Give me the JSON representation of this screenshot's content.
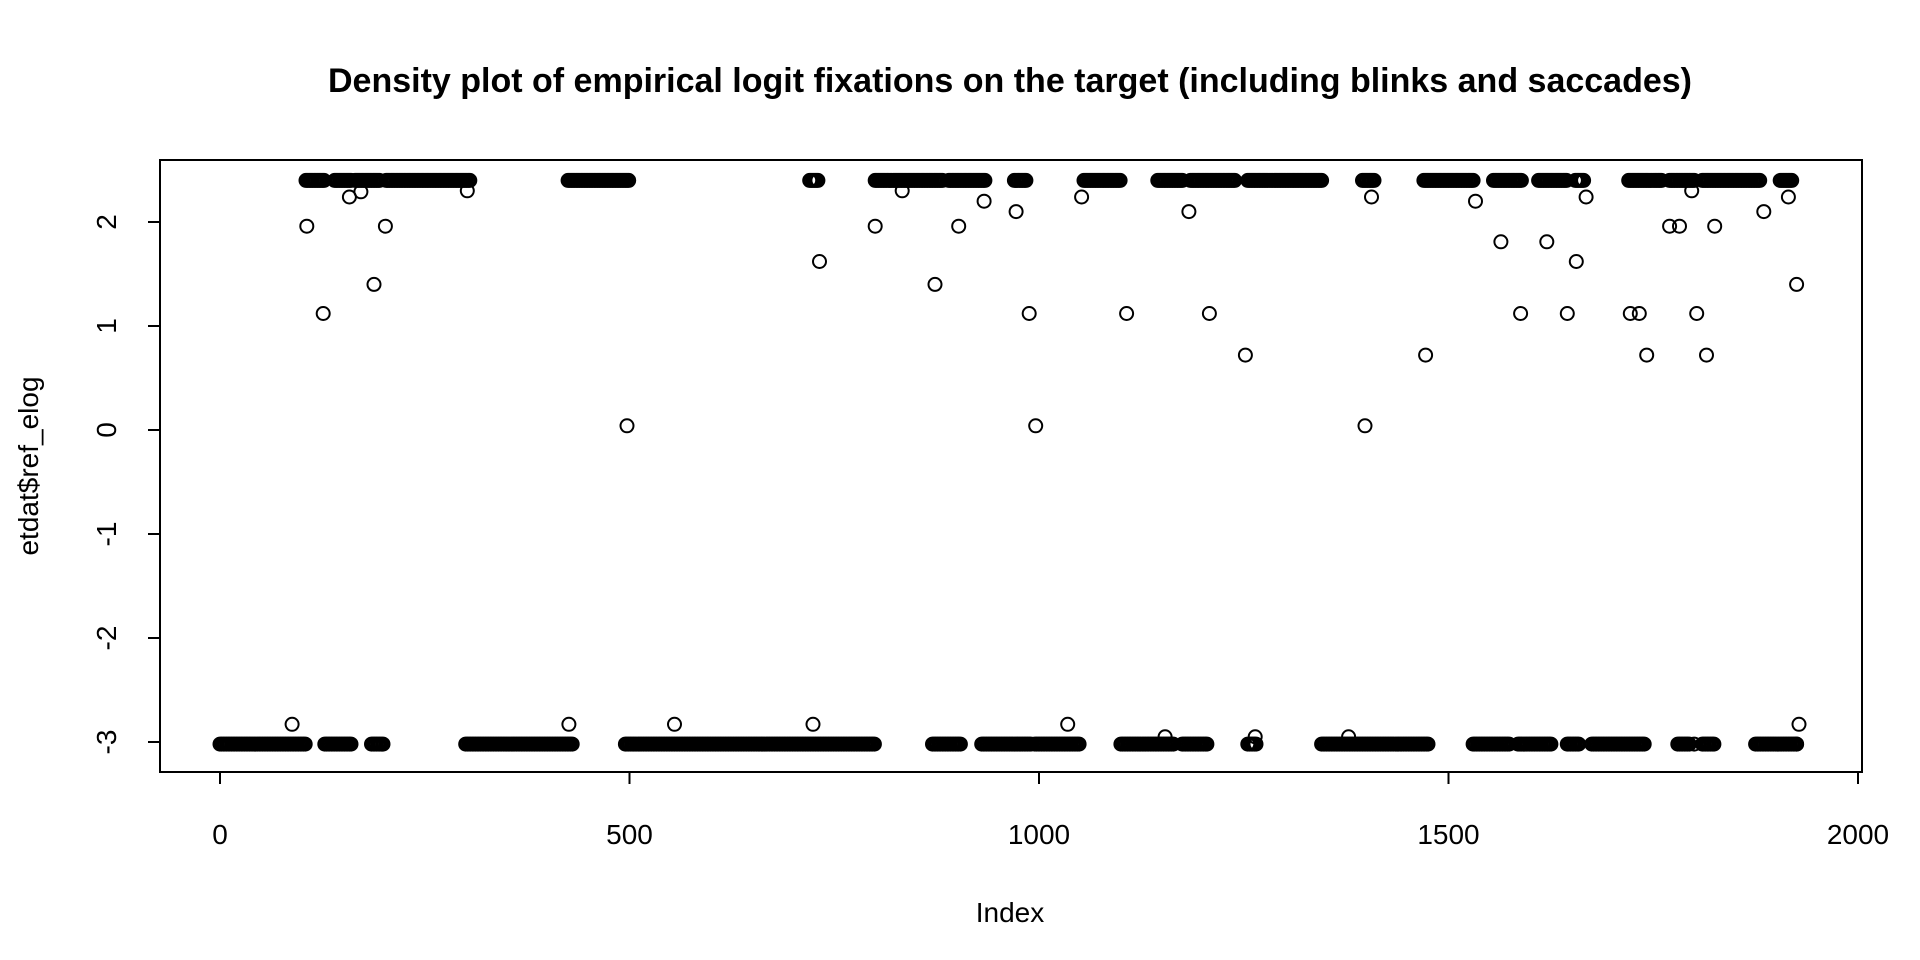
{
  "chart_data": {
    "type": "scatter",
    "title": "Density plot of empirical logit fixations on the target (including blinks and saccades)",
    "xlabel": "Index",
    "ylabel": "etdat$ref_elog",
    "xlim": [
      0,
      2000
    ],
    "ylim": [
      -3.2,
      2.6
    ],
    "x_ticks": [
      0,
      500,
      1000,
      1500,
      2000
    ],
    "x_tick_labels": [
      "0",
      "500",
      "1000",
      "1500",
      "2000"
    ],
    "y_ticks": [
      -3,
      -2,
      -1,
      0,
      1,
      2
    ],
    "y_tick_labels": [
      "-3",
      "-2",
      "-1",
      "0",
      "1",
      "2"
    ],
    "grid": false,
    "marker": "open-circle",
    "high_runs": [
      [
        105,
        128
      ],
      [
        140,
        160
      ],
      [
        165,
        195
      ],
      [
        203,
        305
      ],
      [
        425,
        500
      ],
      [
        720,
        730
      ],
      [
        800,
        882
      ],
      [
        890,
        935
      ],
      [
        970,
        985
      ],
      [
        1055,
        1100
      ],
      [
        1145,
        1175
      ],
      [
        1185,
        1240
      ],
      [
        1255,
        1345
      ],
      [
        1395,
        1410
      ],
      [
        1470,
        1530
      ],
      [
        1555,
        1590
      ],
      [
        1610,
        1645
      ],
      [
        1655,
        1665
      ],
      [
        1720,
        1760
      ],
      [
        1770,
        1800
      ],
      [
        1810,
        1880
      ],
      [
        1905,
        1920
      ]
    ],
    "low_runs": [
      [
        0,
        105
      ],
      [
        128,
        160
      ],
      [
        185,
        200
      ],
      [
        300,
        430
      ],
      [
        495,
        800
      ],
      [
        870,
        905
      ],
      [
        930,
        990
      ],
      [
        995,
        1050
      ],
      [
        1100,
        1165
      ],
      [
        1175,
        1205
      ],
      [
        1255,
        1265
      ],
      [
        1345,
        1475
      ],
      [
        1530,
        1575
      ],
      [
        1585,
        1625
      ],
      [
        1645,
        1660
      ],
      [
        1675,
        1740
      ],
      [
        1780,
        1795
      ],
      [
        1810,
        1825
      ],
      [
        1875,
        1925
      ]
    ],
    "high_value": 2.4,
    "low_value": -3.02,
    "isolated_points": [
      [
        88,
        -2.83
      ],
      [
        106,
        1.96
      ],
      [
        126,
        1.12
      ],
      [
        158,
        2.24
      ],
      [
        172,
        2.29
      ],
      [
        188,
        1.4
      ],
      [
        202,
        1.96
      ],
      [
        302,
        2.3
      ],
      [
        426,
        -2.83
      ],
      [
        497,
        0.04
      ],
      [
        555,
        -2.83
      ],
      [
        724,
        -2.83
      ],
      [
        732,
        1.62
      ],
      [
        800,
        1.96
      ],
      [
        833,
        2.3
      ],
      [
        873,
        1.4
      ],
      [
        902,
        1.96
      ],
      [
        933,
        2.2
      ],
      [
        972,
        2.1
      ],
      [
        988,
        1.12
      ],
      [
        996,
        0.04
      ],
      [
        1035,
        -2.83
      ],
      [
        1052,
        2.24
      ],
      [
        1107,
        1.12
      ],
      [
        1154,
        -2.95
      ],
      [
        1183,
        2.1
      ],
      [
        1208,
        1.12
      ],
      [
        1252,
        0.72
      ],
      [
        1264,
        -2.95
      ],
      [
        1378,
        -2.95
      ],
      [
        1398,
        0.04
      ],
      [
        1406,
        2.24
      ],
      [
        1472,
        0.72
      ],
      [
        1533,
        2.2
      ],
      [
        1564,
        1.81
      ],
      [
        1588,
        1.12
      ],
      [
        1620,
        1.81
      ],
      [
        1645,
        1.12
      ],
      [
        1656,
        1.62
      ],
      [
        1668,
        2.24
      ],
      [
        1722,
        1.12
      ],
      [
        1733,
        1.12
      ],
      [
        1742,
        0.72
      ],
      [
        1770,
        1.96
      ],
      [
        1782,
        1.96
      ],
      [
        1797,
        2.3
      ],
      [
        1803,
        1.12
      ],
      [
        1800,
        -3.02
      ],
      [
        1815,
        0.72
      ],
      [
        1825,
        1.96
      ],
      [
        1885,
        2.1
      ],
      [
        1915,
        2.24
      ],
      [
        1925,
        1.4
      ],
      [
        1928,
        -2.83
      ],
      [
        1925,
        -3.02
      ]
    ]
  }
}
